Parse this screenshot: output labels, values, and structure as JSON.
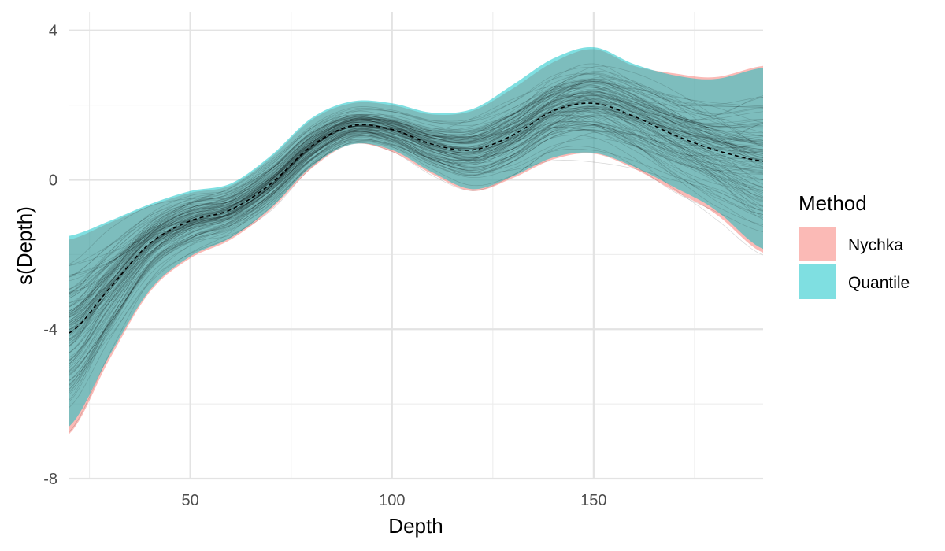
{
  "chart_data": {
    "type": "area",
    "xlabel": "Depth",
    "ylabel": "s(Depth)",
    "xlim": [
      20,
      192
    ],
    "ylim": [
      -8,
      4.5
    ],
    "x_ticks": [
      50,
      100,
      150
    ],
    "y_ticks": [
      -8,
      -4,
      0,
      4
    ],
    "x_tick_labels": [
      "50",
      "100",
      "150"
    ],
    "y_tick_labels": [
      "-8",
      "-4",
      "0",
      "4"
    ],
    "grid": true,
    "legend": {
      "title": "Method",
      "position": "right",
      "entries": [
        {
          "name": "Nychka",
          "color": "#f8766d"
        },
        {
          "name": "Quantile",
          "color": "#00bfc4"
        }
      ]
    },
    "x": [
      20,
      30,
      40,
      50,
      60,
      70,
      80,
      90,
      100,
      110,
      120,
      130,
      140,
      150,
      160,
      170,
      180,
      192
    ],
    "estimate": [
      -4.1,
      -2.9,
      -1.7,
      -1.1,
      -0.8,
      -0.1,
      0.9,
      1.45,
      1.35,
      0.95,
      0.8,
      1.2,
      1.85,
      2.05,
      1.7,
      1.2,
      0.8,
      0.5
    ],
    "series": [
      {
        "name": "Nychka",
        "lower": [
          -6.8,
          -4.8,
          -3.0,
          -2.1,
          -1.6,
          -0.8,
          0.3,
          0.95,
          0.75,
          0.15,
          -0.3,
          0.05,
          0.55,
          0.7,
          0.3,
          -0.3,
          -0.9,
          -1.95
        ],
        "upper": [
          -1.6,
          -1.15,
          -0.7,
          -0.35,
          -0.15,
          0.6,
          1.6,
          2.05,
          2.0,
          1.75,
          1.85,
          2.45,
          3.15,
          3.5,
          3.05,
          2.85,
          2.75,
          3.05
        ],
        "color": "#f8766d"
      },
      {
        "name": "Quantile",
        "lower": [
          -6.6,
          -4.7,
          -2.95,
          -2.05,
          -1.55,
          -0.75,
          0.35,
          0.95,
          0.8,
          0.2,
          -0.25,
          0.1,
          0.6,
          0.72,
          0.35,
          -0.2,
          -0.8,
          -1.85
        ],
        "upper": [
          -1.5,
          -1.1,
          -0.65,
          -0.3,
          -0.1,
          0.65,
          1.65,
          2.1,
          2.05,
          1.8,
          1.9,
          2.55,
          3.25,
          3.55,
          3.1,
          2.8,
          2.7,
          3.0
        ],
        "color": "#00bfc4"
      }
    ],
    "posterior_draws": 120
  }
}
